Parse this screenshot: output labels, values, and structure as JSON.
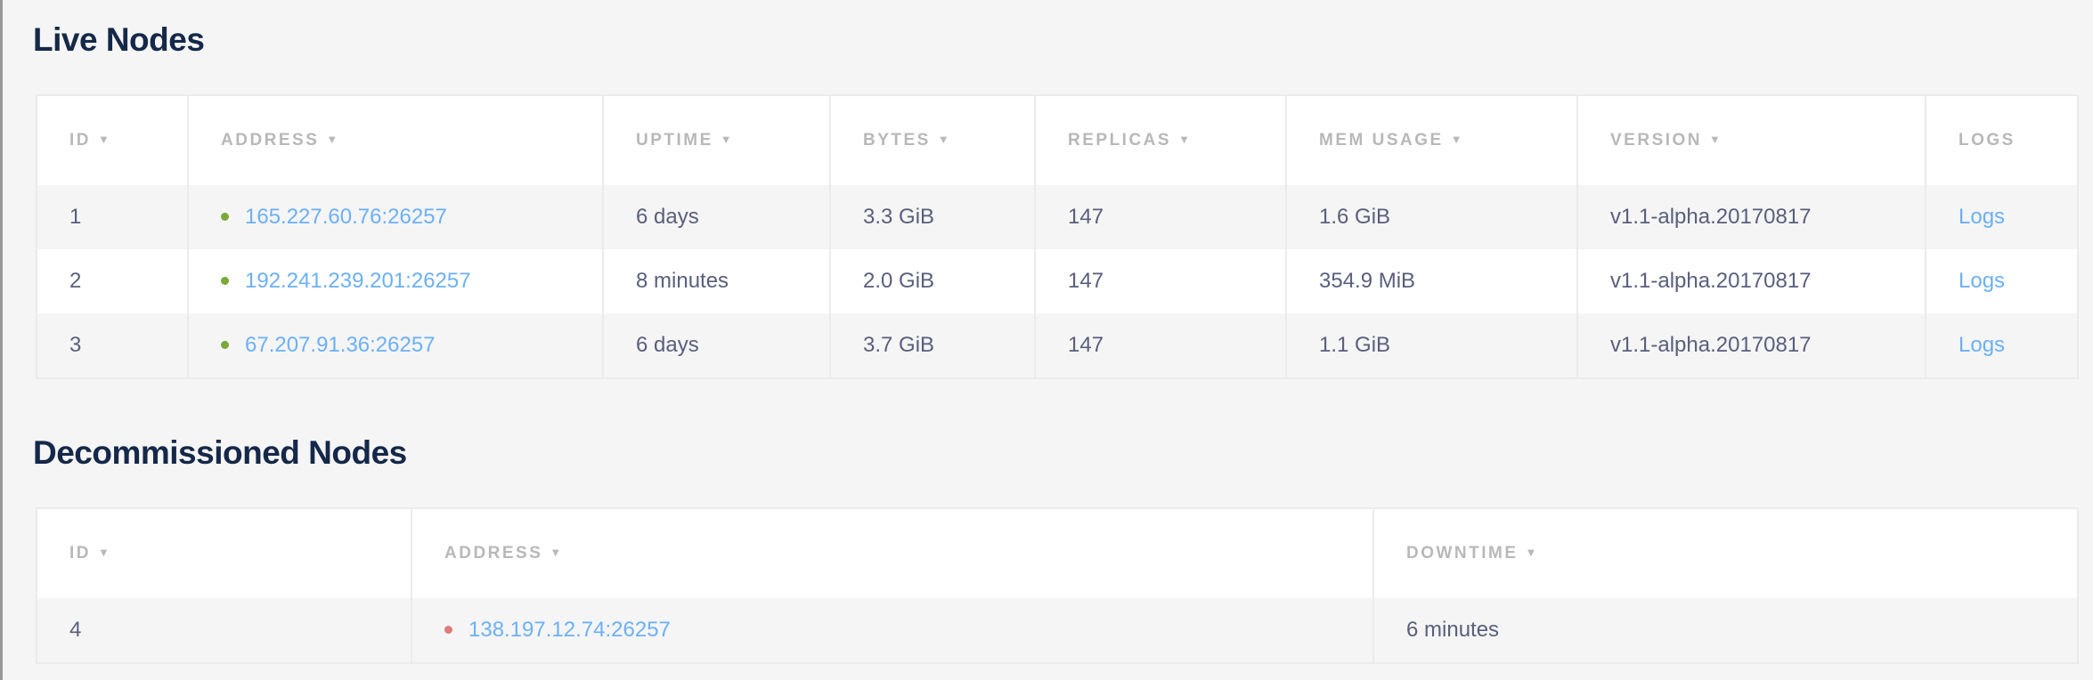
{
  "live": {
    "title": "Live Nodes",
    "columns": [
      "ID",
      "ADDRESS",
      "UPTIME",
      "BYTES",
      "REPLICAS",
      "MEM USAGE",
      "VERSION",
      "LOGS"
    ],
    "sortable": [
      true,
      true,
      true,
      true,
      true,
      true,
      true,
      false
    ],
    "sort_arrow": "▼",
    "rows": [
      {
        "id": "1",
        "address": "165.227.60.76:26257",
        "uptime": "6 days",
        "bytes": "3.3 GiB",
        "replicas": "147",
        "mem": "1.6 GiB",
        "version": "v1.1-alpha.20170817",
        "logs": "Logs",
        "status": "live"
      },
      {
        "id": "2",
        "address": "192.241.239.201:26257",
        "uptime": "8 minutes",
        "bytes": "2.0 GiB",
        "replicas": "147",
        "mem": "354.9 MiB",
        "version": "v1.1-alpha.20170817",
        "logs": "Logs",
        "status": "live"
      },
      {
        "id": "3",
        "address": "67.207.91.36:26257",
        "uptime": "6 days",
        "bytes": "3.7 GiB",
        "replicas": "147",
        "mem": "1.1 GiB",
        "version": "v1.1-alpha.20170817",
        "logs": "Logs",
        "status": "live"
      }
    ]
  },
  "decommissioned": {
    "title": "Decommissioned Nodes",
    "columns": [
      "ID",
      "ADDRESS",
      "DOWNTIME"
    ],
    "sort_arrow": "▼",
    "rows": [
      {
        "id": "4",
        "address": "138.197.12.74:26257",
        "downtime": "6 minutes",
        "status": "dead"
      }
    ]
  },
  "colors": {
    "live_dot": "#7ba838",
    "dead_dot": "#e07b7b",
    "link": "#6cb0f7",
    "title": "#152849",
    "text": "#595f7c"
  }
}
